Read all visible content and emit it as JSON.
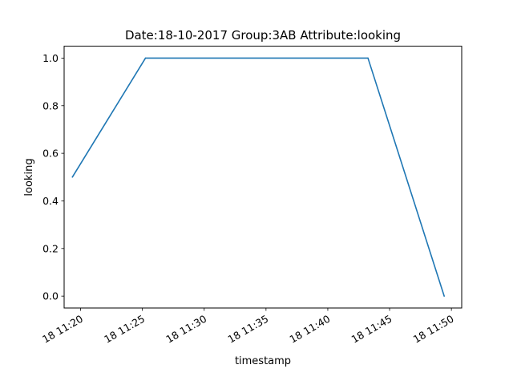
{
  "chart_data": {
    "type": "line",
    "title": "Date:18-10-2017  Group:3AB Attribute:looking",
    "xlabel": "timestamp",
    "ylabel": "looking",
    "x_ticks": [
      {
        "time": "11:20",
        "label": "18 11:20"
      },
      {
        "time": "11:25",
        "label": "18 11:25"
      },
      {
        "time": "11:30",
        "label": "18 11:30"
      },
      {
        "time": "11:35",
        "label": "18 11:35"
      },
      {
        "time": "11:40",
        "label": "18 11:40"
      },
      {
        "time": "11:45",
        "label": "18 11:45"
      },
      {
        "time": "11:50",
        "label": "18 11:50"
      }
    ],
    "y_ticks": [
      "0.0",
      "0.2",
      "0.4",
      "0.6",
      "0.8",
      "1.0"
    ],
    "xlim": [
      "11:18:40",
      "11:50:50"
    ],
    "ylim": [
      -0.05,
      1.05
    ],
    "series": [
      {
        "color": "#1f77b4",
        "points": [
          {
            "x": "11:19:20",
            "y": 0.5
          },
          {
            "x": "11:25:15",
            "y": 1.0
          },
          {
            "x": "11:43:15",
            "y": 1.0
          },
          {
            "x": "11:49:25",
            "y": 0.0
          }
        ]
      }
    ],
    "grid": false,
    "legend": "none"
  }
}
